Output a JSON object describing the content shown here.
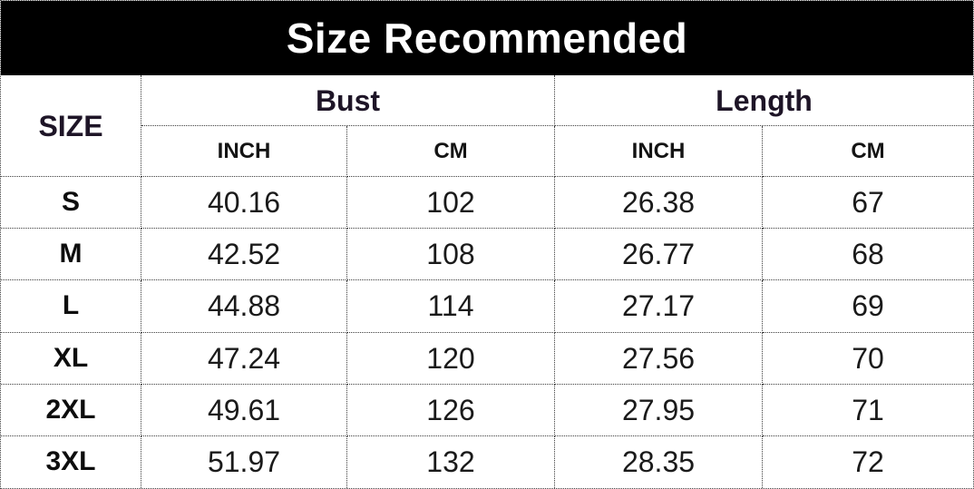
{
  "header": {
    "title": "Size Recommended"
  },
  "table": {
    "size_header": "SIZE",
    "bust_label": "Bust",
    "length_label": "Length",
    "units": [
      "INCH",
      "CM",
      "INCH",
      "CM"
    ],
    "rows": [
      {
        "size": "S",
        "values": [
          "40.16",
          "102",
          "26.38",
          "67"
        ]
      },
      {
        "size": "M",
        "values": [
          "42.52",
          "108",
          "26.77",
          "68"
        ]
      },
      {
        "size": "L",
        "values": [
          "44.88",
          "114",
          "27.17",
          "69"
        ]
      },
      {
        "size": "XL",
        "values": [
          "47.24",
          "120",
          "27.56",
          "70"
        ]
      },
      {
        "size": "2XL",
        "values": [
          "49.61",
          "126",
          "27.95",
          "71"
        ]
      },
      {
        "size": "3XL",
        "values": [
          "51.97",
          "132",
          "28.35",
          "72"
        ]
      }
    ]
  },
  "colors": {
    "bar_bg": "#000000",
    "bar_text": "#ffffff",
    "head_text": "#1e1527",
    "unit_text": "#141414",
    "size_text": "#0d0d0d",
    "data_text": "#1a1a1a",
    "border": "#3c3c3c"
  },
  "chart_data": {
    "type": "table",
    "title": "Size Recommended",
    "column_groups": [
      "Bust",
      "Length"
    ],
    "columns": [
      "SIZE",
      "Bust INCH",
      "Bust CM",
      "Length INCH",
      "Length CM"
    ],
    "rows": [
      [
        "S",
        40.16,
        102,
        26.38,
        67
      ],
      [
        "M",
        42.52,
        108,
        26.77,
        68
      ],
      [
        "L",
        44.88,
        114,
        27.17,
        69
      ],
      [
        "XL",
        47.24,
        120,
        27.56,
        70
      ],
      [
        "2XL",
        49.61,
        126,
        27.95,
        71
      ],
      [
        "3XL",
        51.97,
        132,
        28.35,
        72
      ]
    ]
  }
}
